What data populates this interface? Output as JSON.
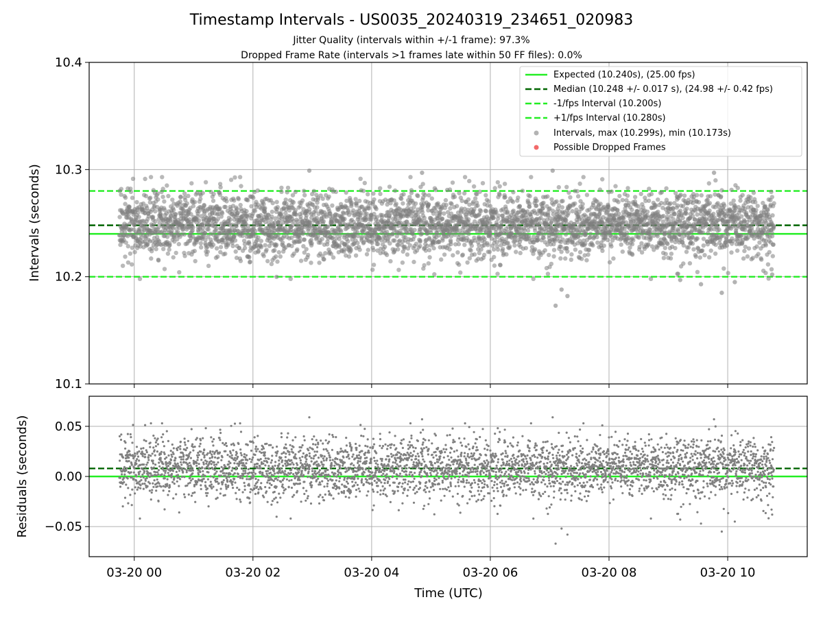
{
  "chart_data": {
    "type": "scatter",
    "title": "Timestamp Intervals - US0035_20240319_234651_020983",
    "subtitle_lines": [
      "Jitter Quality (intervals within +/-1 frame): 97.3%",
      "Dropped Frame Rate (intervals >1 frames late within 50 FF files): 0.0%"
    ],
    "xlabel": "Time (UTC)",
    "x_axis": {
      "type": "time",
      "range_hours": [
        -0.76,
        11.34
      ],
      "data_start_hour": -0.25,
      "data_end_hour": 10.78,
      "ticks": [
        {
          "hour": 0,
          "label": "03-20 00"
        },
        {
          "hour": 2,
          "label": "03-20 02"
        },
        {
          "hour": 4,
          "label": "03-20 04"
        },
        {
          "hour": 6,
          "label": "03-20 06"
        },
        {
          "hour": 8,
          "label": "03-20 08"
        },
        {
          "hour": 10,
          "label": "03-20 10"
        }
      ]
    },
    "grid": true,
    "legend_position": "top-right",
    "colors": {
      "expected": "#22ee22",
      "median": "#006400",
      "interval_bound": "#22ee22",
      "points": "#808080",
      "dropped": "#f05050",
      "grid": "#b0b0b0"
    },
    "n_points": 3860,
    "top_panel": {
      "ylabel": "Intervals (seconds)",
      "ylim": [
        10.1,
        10.4
      ],
      "yticks": [
        {
          "value": 10.1,
          "label": "10.1"
        },
        {
          "value": 10.2,
          "label": "10.2"
        },
        {
          "value": 10.3,
          "label": "10.3"
        },
        {
          "value": 10.4,
          "label": "10.4"
        }
      ],
      "expected": 10.24,
      "median": 10.248,
      "median_std": 0.017,
      "lower_interval": 10.2,
      "upper_interval": 10.28,
      "max": 10.299,
      "min": 10.173,
      "outliers": [
        {
          "hour": 2.95,
          "value": 10.299
        },
        {
          "hour": 4.85,
          "value": 10.297
        },
        {
          "hour": 7.05,
          "value": 10.299
        },
        {
          "hour": 9.77,
          "value": 10.297
        },
        {
          "hour": 7.1,
          "value": 10.173
        },
        {
          "hour": 7.2,
          "value": 10.188
        },
        {
          "hour": 7.3,
          "value": 10.182
        },
        {
          "hour": 9.2,
          "value": 10.197
        },
        {
          "hour": 9.55,
          "value": 10.193
        },
        {
          "hour": 9.9,
          "value": 10.185
        },
        {
          "hour": 10.12,
          "value": 10.195
        },
        {
          "hour": 10.75,
          "value": 10.202
        }
      ],
      "legend": [
        {
          "key": "expected",
          "kind": "line-solid",
          "label": "Expected (10.240s), (25.00 fps)"
        },
        {
          "key": "median",
          "kind": "line-dashed",
          "label": "Median (10.248 +/- 0.017 s), (24.98 +/- 0.42 fps)"
        },
        {
          "key": "lower",
          "kind": "line-dashed-bright",
          "label": "-1/fps Interval (10.200s)"
        },
        {
          "key": "upper",
          "kind": "line-dashed-bright",
          "label": "+1/fps Interval (10.280s)"
        },
        {
          "key": "intervals",
          "kind": "marker-grey",
          "label": "Intervals, max (10.299s), min (10.173s)"
        },
        {
          "key": "dropped",
          "kind": "marker-red",
          "label": "Possible Dropped Frames"
        }
      ]
    },
    "bottom_panel": {
      "ylabel": "Residuals (seconds)",
      "ylim": [
        -0.08,
        0.08
      ],
      "yticks": [
        {
          "value": -0.05,
          "label": "−0.05"
        },
        {
          "value": 0.0,
          "label": "0.00"
        },
        {
          "value": 0.05,
          "label": "0.05"
        }
      ],
      "expected": 0.0,
      "median": 0.008
    }
  }
}
